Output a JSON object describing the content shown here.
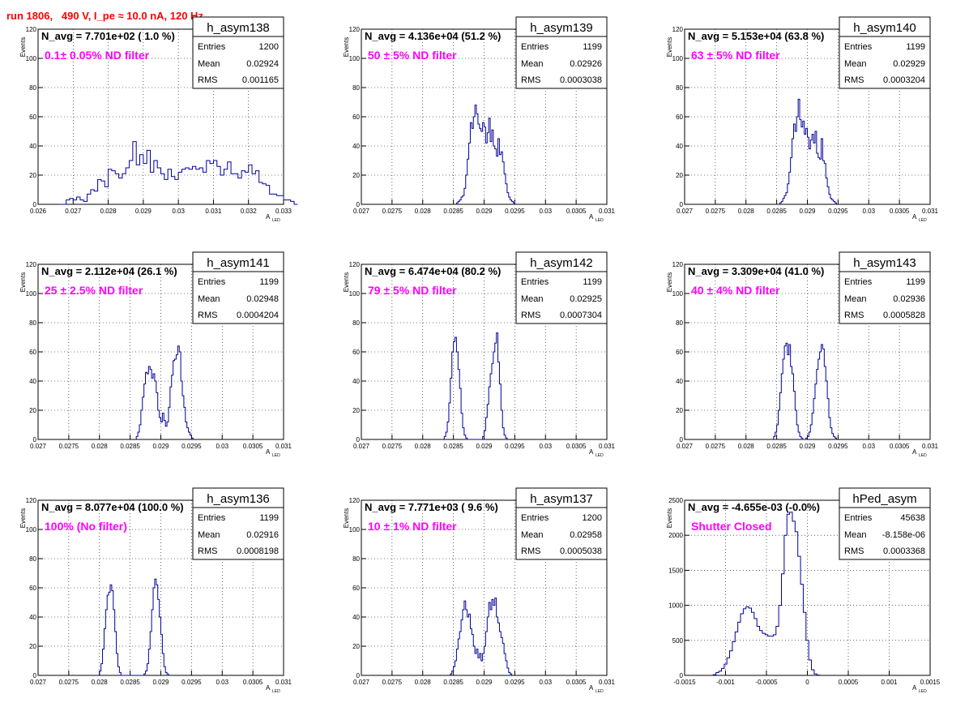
{
  "page_title": "run 1806,   490 V, I_pe ≈ 10.0 nA, 120 Hz",
  "colors": {
    "hist": "#000099",
    "title": "#ff0000",
    "filter": "#ff00ff",
    "axis": "#000000",
    "grid": "#000000"
  },
  "stat_labels": {
    "entries": "Entries",
    "mean": "Mean",
    "rms": "RMS"
  },
  "axis_titles": {
    "y": "Events",
    "x_main": "A",
    "x_sub": "LED"
  },
  "chart_data": [
    {
      "type": "bar",
      "name": "h_asym138",
      "navg": "N_avg = 7.701e+02 ( 1.0 %)",
      "filter": "0.1± 0.05% ND filter",
      "stats": {
        "entries": "1200",
        "mean": "0.02924",
        "rms": "0.001165"
      },
      "xlim": [
        0.026,
        0.033
      ],
      "ylim": [
        0,
        120
      ],
      "xticks": [
        0.026,
        0.027,
        0.028,
        0.029,
        0.03,
        0.031,
        0.032,
        0.033
      ],
      "xtick_labels": [
        "0.026",
        "0.027",
        "0.028",
        "0.029",
        "0.03",
        "0.031",
        "0.032",
        "0.033"
      ],
      "yticks": [
        0,
        20,
        40,
        60,
        80,
        100,
        120
      ],
      "ytick_labels": [
        "0",
        "20",
        "40",
        "60",
        "80",
        "100",
        "120"
      ],
      "grid": true,
      "bin_start": 0.0266,
      "bin_width": 0.0001,
      "counts": [
        0,
        0,
        3,
        4,
        3,
        5,
        3,
        2,
        7,
        10,
        9,
        17,
        16,
        12,
        24,
        23,
        21,
        18,
        21,
        25,
        30,
        43,
        27,
        34,
        28,
        37,
        22,
        30,
        25,
        21,
        17,
        24,
        19,
        17,
        22,
        24,
        25,
        24,
        26,
        24,
        25,
        22,
        30,
        28,
        30,
        26,
        20,
        24,
        29,
        21,
        21,
        18,
        23,
        22,
        27,
        21,
        23,
        15,
        14,
        13,
        7,
        7,
        6,
        6,
        3,
        3,
        2,
        0
      ]
    },
    {
      "type": "bar",
      "name": "h_asym139",
      "navg": "N_avg = 4.136e+04 (51.2 %)",
      "filter": "50 ± 5% ND filter",
      "stats": {
        "entries": "1199",
        "mean": "0.02926",
        "rms": "0.0003038"
      },
      "xlim": [
        0.027,
        0.031
      ],
      "ylim": [
        0,
        120
      ],
      "xticks": [
        0.027,
        0.0275,
        0.028,
        0.0285,
        0.029,
        0.0295,
        0.03,
        0.0305,
        0.031
      ],
      "xtick_labels": [
        "0.027",
        "0.0275",
        "0.028",
        "0.0285",
        "0.029",
        "0.0295",
        "0.03",
        "0.0305",
        "0.031"
      ],
      "yticks": [
        0,
        20,
        40,
        60,
        80,
        100,
        120
      ],
      "ytick_labels": [
        "0",
        "20",
        "40",
        "60",
        "80",
        "100",
        "120"
      ],
      "grid": true,
      "bin_start": 0.02855,
      "bin_width": 2.5e-05,
      "counts": [
        1,
        2,
        3,
        5,
        6,
        11,
        20,
        31,
        42,
        56,
        52,
        60,
        68,
        62,
        55,
        52,
        50,
        56,
        53,
        42,
        49,
        59,
        43,
        51,
        40,
        38,
        33,
        45,
        34,
        36,
        29,
        21,
        14,
        8,
        5,
        3,
        2,
        1
      ]
    },
    {
      "type": "bar",
      "name": "h_asym140",
      "navg": "N_avg = 5.153e+04 (63.8 %)",
      "filter": "63 ± 5% ND filter",
      "stats": {
        "entries": "1199",
        "mean": "0.02929",
        "rms": "0.0003204"
      },
      "xlim": [
        0.027,
        0.031
      ],
      "ylim": [
        0,
        120
      ],
      "xticks": [
        0.027,
        0.0275,
        0.028,
        0.0285,
        0.029,
        0.0295,
        0.03,
        0.0305,
        0.031
      ],
      "xtick_labels": [
        "0.027",
        "0.0275",
        "0.028",
        "0.0285",
        "0.029",
        "0.0295",
        "0.03",
        "0.0305",
        "0.031"
      ],
      "yticks": [
        0,
        20,
        40,
        60,
        80,
        100,
        120
      ],
      "ytick_labels": [
        "0",
        "20",
        "40",
        "60",
        "80",
        "100",
        "120"
      ],
      "grid": true,
      "bin_start": 0.02855,
      "bin_width": 2.5e-05,
      "counts": [
        1,
        2,
        4,
        6,
        8,
        14,
        22,
        32,
        45,
        55,
        50,
        60,
        72,
        58,
        53,
        57,
        48,
        52,
        46,
        38,
        44,
        48,
        42,
        50,
        35,
        32,
        31,
        45,
        30,
        28,
        18,
        12,
        7,
        4,
        3,
        2,
        1
      ]
    },
    {
      "type": "bar",
      "name": "h_asym141",
      "navg": "N_avg = 2.112e+04 (26.1 %)",
      "filter": "25 ± 2.5% ND filter",
      "stats": {
        "entries": "1199",
        "mean": "0.02948",
        "rms": "0.0004204"
      },
      "xlim": [
        0.027,
        0.031
      ],
      "ylim": [
        0,
        120
      ],
      "xticks": [
        0.027,
        0.0275,
        0.028,
        0.0285,
        0.029,
        0.0295,
        0.03,
        0.0305,
        0.031
      ],
      "xtick_labels": [
        "0.027",
        "0.0275",
        "0.028",
        "0.0285",
        "0.029",
        "0.0295",
        "0.03",
        "0.0305",
        "0.031"
      ],
      "yticks": [
        0,
        20,
        40,
        60,
        80,
        100,
        120
      ],
      "ytick_labels": [
        "0",
        "20",
        "40",
        "60",
        "80",
        "100",
        "120"
      ],
      "grid": true,
      "bin_start": 0.0286,
      "bin_width": 2.5e-05,
      "counts": [
        2,
        5,
        10,
        20,
        29,
        38,
        46,
        45,
        50,
        48,
        42,
        45,
        40,
        32,
        20,
        15,
        12,
        18,
        13,
        9,
        12,
        22,
        36,
        44,
        54,
        55,
        58,
        64,
        60,
        40,
        30,
        22,
        12,
        8,
        5,
        3,
        1
      ]
    },
    {
      "type": "bar",
      "name": "h_asym142",
      "navg": "N_avg = 6.474e+04 (80.2 %)",
      "filter": "79 ± 5% ND filter",
      "stats": {
        "entries": "1199",
        "mean": "0.02925",
        "rms": "0.0007304"
      },
      "xlim": [
        0.027,
        0.031
      ],
      "ylim": [
        0,
        120
      ],
      "xticks": [
        0.027,
        0.0275,
        0.028,
        0.0285,
        0.029,
        0.0295,
        0.03,
        0.0305,
        0.031
      ],
      "xtick_labels": [
        "0.027",
        "0.0275",
        "0.028",
        "0.0285",
        "0.029",
        "0.0295",
        "0.03",
        "0.0305",
        "0.031"
      ],
      "yticks": [
        0,
        20,
        40,
        60,
        80,
        100,
        120
      ],
      "ytick_labels": [
        "0",
        "20",
        "40",
        "60",
        "80",
        "100",
        "120"
      ],
      "grid": true,
      "bin_start": 0.02835,
      "bin_width": 2.5e-05,
      "counts": [
        2,
        5,
        12,
        25,
        42,
        60,
        67,
        70,
        60,
        48,
        35,
        18,
        8,
        3,
        1,
        0,
        0,
        0,
        0,
        0,
        0,
        0,
        0,
        0,
        0,
        2,
        6,
        15,
        24,
        36,
        45,
        52,
        60,
        66,
        73,
        53,
        38,
        20,
        8,
        3,
        1
      ]
    },
    {
      "type": "bar",
      "name": "h_asym143",
      "navg": "N_avg = 3.309e+04 (41.0 %)",
      "filter": "40 ± 4% ND filter",
      "stats": {
        "entries": "1199",
        "mean": "0.02936",
        "rms": "0.0005828"
      },
      "xlim": [
        0.027,
        0.031
      ],
      "ylim": [
        0,
        120
      ],
      "xticks": [
        0.027,
        0.0275,
        0.028,
        0.0285,
        0.029,
        0.0295,
        0.03,
        0.0305,
        0.031
      ],
      "xtick_labels": [
        "0.027",
        "0.0275",
        "0.028",
        "0.0285",
        "0.029",
        "0.0295",
        "0.03",
        "0.0305",
        "0.031"
      ],
      "yticks": [
        0,
        20,
        40,
        60,
        80,
        100,
        120
      ],
      "ytick_labels": [
        "0",
        "20",
        "40",
        "60",
        "80",
        "100",
        "120"
      ],
      "grid": true,
      "bin_start": 0.02845,
      "bin_width": 2.5e-05,
      "counts": [
        2,
        5,
        10,
        20,
        32,
        45,
        55,
        64,
        66,
        58,
        65,
        50,
        45,
        33,
        20,
        10,
        5,
        2,
        1,
        0,
        0,
        1,
        2,
        5,
        10,
        18,
        28,
        38,
        48,
        55,
        60,
        65,
        62,
        50,
        40,
        28,
        15,
        8,
        4,
        2,
        1
      ]
    },
    {
      "type": "bar",
      "name": "h_asym136",
      "navg": "N_avg = 8.077e+04 (100.0 %)",
      "filter": "100% (No filter)",
      "stats": {
        "entries": "1199",
        "mean": "0.02916",
        "rms": "0.0008198"
      },
      "xlim": [
        0.027,
        0.031
      ],
      "ylim": [
        0,
        120
      ],
      "xticks": [
        0.027,
        0.0275,
        0.028,
        0.0285,
        0.029,
        0.0295,
        0.03,
        0.0305,
        0.031
      ],
      "xtick_labels": [
        "0.027",
        "0.0275",
        "0.028",
        "0.0285",
        "0.029",
        "0.0295",
        "0.03",
        "0.0305",
        "0.031"
      ],
      "yticks": [
        0,
        20,
        40,
        60,
        80,
        100,
        120
      ],
      "ytick_labels": [
        "0",
        "20",
        "40",
        "60",
        "80",
        "100",
        "120"
      ],
      "grid": true,
      "bin_start": 0.028,
      "bin_width": 2.5e-05,
      "counts": [
        3,
        8,
        18,
        32,
        45,
        55,
        57,
        62,
        58,
        45,
        30,
        15,
        6,
        2,
        0,
        0,
        0,
        0,
        0,
        0,
        0,
        0,
        0,
        0,
        0,
        0,
        0,
        0,
        0,
        1,
        3,
        8,
        18,
        30,
        45,
        60,
        66,
        62,
        52,
        40,
        28,
        15,
        6,
        2,
        1
      ]
    },
    {
      "type": "bar",
      "name": "h_asym137",
      "navg": "N_avg = 7.771e+03 ( 9.6 %)",
      "filter": "10 ± 1% ND filter",
      "stats": {
        "entries": "1200",
        "mean": "0.02958",
        "rms": "0.0005038"
      },
      "xlim": [
        0.027,
        0.031
      ],
      "ylim": [
        0,
        120
      ],
      "xticks": [
        0.027,
        0.0275,
        0.028,
        0.0285,
        0.029,
        0.0295,
        0.03,
        0.0305,
        0.031
      ],
      "xtick_labels": [
        "0.027",
        "0.0275",
        "0.028",
        "0.0285",
        "0.029",
        "0.0295",
        "0.03",
        "0.0305",
        "0.031"
      ],
      "yticks": [
        0,
        20,
        40,
        60,
        80,
        100,
        120
      ],
      "ytick_labels": [
        "0",
        "20",
        "40",
        "60",
        "80",
        "100",
        "120"
      ],
      "grid": true,
      "bin_start": 0.02845,
      "bin_width": 2.5e-05,
      "counts": [
        1,
        3,
        6,
        10,
        18,
        25,
        30,
        38,
        45,
        51,
        45,
        40,
        42,
        32,
        28,
        20,
        15,
        18,
        12,
        15,
        10,
        15,
        20,
        30,
        40,
        50,
        45,
        52,
        48,
        53,
        40,
        36,
        30,
        26,
        22,
        15,
        10,
        5,
        2,
        1
      ]
    },
    {
      "type": "bar",
      "name": "hPed_asym",
      "navg": "N_avg = -4.655e-03 (-0.0%)",
      "filter": "Shutter Closed",
      "stats": {
        "entries": "45638",
        "mean": "-8.158e-06",
        "rms": "0.0003368"
      },
      "xlim": [
        -0.0015,
        0.0015
      ],
      "ylim": [
        0,
        2500
      ],
      "xticks": [
        -0.0015,
        -0.001,
        -0.0005,
        0,
        0.0005,
        0.001,
        0.0015
      ],
      "xtick_labels": [
        "-0.0015",
        "-0.001",
        "-0.0005",
        "0",
        "0.0005",
        "0.001",
        "0.0015"
      ],
      "yticks": [
        0,
        500,
        1000,
        1500,
        2000,
        2500
      ],
      "ytick_labels": [
        "0",
        "500",
        "1000",
        "1500",
        "2000",
        "2500"
      ],
      "grid": true,
      "bin_start": -0.00115,
      "bin_width": 3.333e-05,
      "counts": [
        10,
        40,
        60,
        100,
        160,
        250,
        350,
        480,
        620,
        760,
        880,
        950,
        980,
        960,
        900,
        810,
        700,
        640,
        600,
        580,
        560,
        560,
        580,
        700,
        1000,
        1450,
        2000,
        2300,
        2330,
        2200,
        2050,
        1700,
        1300,
        900,
        500,
        220,
        80,
        20,
        5
      ]
    }
  ]
}
